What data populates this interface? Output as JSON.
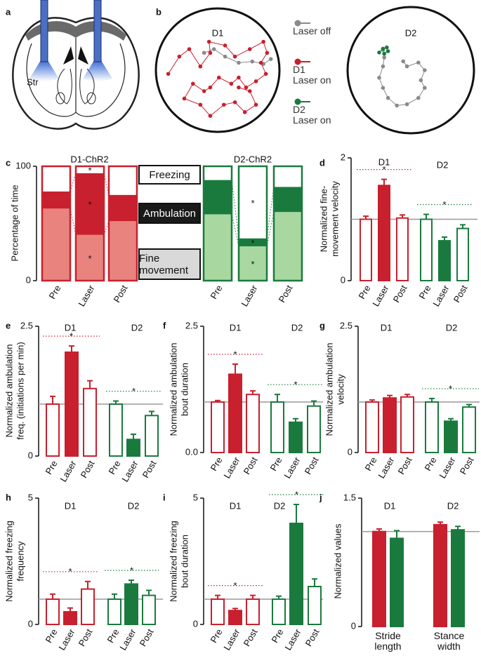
{
  "chart_data": [
    {
      "type": "diagram",
      "label": "a",
      "region_label": "Str"
    },
    {
      "type": "trajectory",
      "label": "b",
      "xlim": [
        0,
        100
      ],
      "ylim": [
        0,
        100
      ],
      "arenas": [
        {
          "title": "D1",
          "color": "#c8202e",
          "series": [
            {
              "name": "Laser off",
              "color": "#8a8a8a",
              "x": [
                39,
                47,
                56,
                67,
                78,
                87,
                93
              ],
              "y": [
                64,
                67,
                61,
                56,
                57,
                55,
                59
              ]
            },
            {
              "name": "D1 Laser on",
              "color": "#c8202e",
              "x": [
                10,
                19,
                27,
                36,
                44,
                43,
                56,
                64,
                76,
                87,
                90,
                85,
                89,
                81,
                73,
                67,
                61,
                51,
                44,
                39,
                30,
                23,
                36,
                44,
                55,
                64,
                72,
                81,
                76,
                67
              ],
              "y": [
                47,
                61,
                67,
                53,
                64,
                73,
                70,
                61,
                67,
                73,
                64,
                56,
                47,
                41,
                36,
                44,
                39,
                44,
                36,
                33,
                39,
                27,
                22,
                13,
                22,
                24,
                16,
                22,
                33,
                36
              ]
            }
          ]
        },
        {
          "title": "D2",
          "color": "#1a7a3e",
          "series": [
            {
              "name": "Laser off",
              "color": "#8a8a8a",
              "x": [
                44,
                47,
                56,
                61,
                58,
                61,
                56,
                47,
                39,
                32,
                28,
                25,
                28,
                29,
                28
              ],
              "y": [
                57,
                53,
                56,
                50,
                42,
                36,
                28,
                23,
                22,
                28,
                36,
                44,
                53,
                60,
                66
              ]
            },
            {
              "name": "D2 Laser on",
              "color": "#1a7a3e",
              "x": [
                25,
                28,
                31,
                32,
                29
              ],
              "y": [
                64,
                67,
                68,
                65,
                63
              ]
            }
          ]
        }
      ]
    },
    {
      "type": "stacked_bar",
      "label": "c",
      "ylabel": [
        "Percentage of time"
      ],
      "ylim": [
        0,
        100
      ],
      "yticks": [
        0,
        100
      ],
      "categories": [
        "Pre",
        "Laser",
        "Post"
      ],
      "legend": [
        {
          "name": "Fine movement",
          "color": "#d9d9d9"
        },
        {
          "name": "Ambulation",
          "color": "#1a1a1a"
        },
        {
          "name": "Freezing",
          "color": "#ffffff"
        }
      ],
      "groups": [
        {
          "name": "D1-ChR2",
          "color": "#c8202e",
          "series": [
            {
              "color": "#e8837d",
              "values": [
                63,
                40,
                52
              ],
              "annotations": [
                null,
                "*",
                null
              ]
            },
            {
              "color": "#c8202e",
              "values": [
                15,
                54,
                23
              ],
              "annotations": [
                null,
                "*",
                null
              ]
            },
            {
              "color": "#ffffff",
              "values": [
                22,
                6,
                25
              ],
              "annotations": [
                null,
                "*",
                null
              ]
            }
          ]
        },
        {
          "name": "D2-ChR2",
          "color": "#1a7a3e",
          "series": [
            {
              "color": "#a8d8a0",
              "values": [
                58,
                30,
                60
              ],
              "annotations": [
                null,
                "*",
                null
              ]
            },
            {
              "color": "#1a7a3e",
              "values": [
                30,
                7,
                22
              ],
              "annotations": [
                null,
                "*",
                null
              ]
            },
            {
              "color": "#ffffff",
              "values": [
                12,
                63,
                18
              ],
              "annotations": [
                null,
                "*",
                null
              ]
            }
          ]
        }
      ]
    },
    {
      "type": "bar",
      "label": "d",
      "ylabel": [
        "Normalized fine-",
        "movement velocity"
      ],
      "ylim": [
        0,
        2
      ],
      "yticks": [
        0,
        2
      ],
      "reference_line": 1,
      "categories": [
        "Pre",
        "Laser",
        "Post"
      ],
      "filled": [
        false,
        true,
        false
      ],
      "series": [
        {
          "name": "D1",
          "color": "#c8202e",
          "values": [
            1.0,
            1.55,
            1.02
          ],
          "errors": [
            0.05,
            0.1,
            0.05
          ],
          "annotation": "*"
        },
        {
          "name": "D2",
          "color": "#1a7a3e",
          "values": [
            1.0,
            0.65,
            0.85
          ],
          "errors": [
            0.08,
            0.06,
            0.06
          ],
          "annotation": "*"
        }
      ]
    },
    {
      "type": "bar",
      "label": "e",
      "ylabel": [
        "Normalized ambulation",
        "freq. (initiations per min)"
      ],
      "ylim": [
        0,
        2.5
      ],
      "yticks": [
        0,
        2.5
      ],
      "reference_line": 1,
      "categories": [
        "Pre",
        "Laser",
        "Post"
      ],
      "filled": [
        false,
        true,
        false
      ],
      "series": [
        {
          "name": "D1",
          "color": "#c8202e",
          "values": [
            1.0,
            2.0,
            1.3
          ],
          "errors": [
            0.15,
            0.12,
            0.15
          ],
          "annotation": "*"
        },
        {
          "name": "D2",
          "color": "#1a7a3e",
          "values": [
            1.0,
            0.32,
            0.78
          ],
          "errors": [
            0.06,
            0.1,
            0.08
          ],
          "annotation": "*"
        }
      ]
    },
    {
      "type": "bar",
      "label": "f",
      "ylabel": [
        "Normalized ambulation",
        "bout duration"
      ],
      "ylim": [
        0,
        2.5
      ],
      "yticks": [
        {
          "value": 0,
          "label": "0.0"
        },
        2.5
      ],
      "reference_line": 1,
      "categories": [
        "Pre",
        "Laser",
        "Post"
      ],
      "filled": [
        false,
        true,
        false
      ],
      "series": [
        {
          "name": "D1",
          "color": "#c8202e",
          "values": [
            1.0,
            1.55,
            1.15
          ],
          "errors": [
            0.03,
            0.2,
            0.07
          ],
          "annotation": "*"
        },
        {
          "name": "D2",
          "color": "#1a7a3e",
          "values": [
            1.0,
            0.6,
            0.92
          ],
          "errors": [
            0.15,
            0.07,
            0.1
          ],
          "annotation": "*"
        }
      ]
    },
    {
      "type": "bar",
      "label": "g",
      "ylabel": [
        "Normalized ambulation",
        "velocity"
      ],
      "ylim": [
        0,
        2.5
      ],
      "yticks": [
        0,
        2.5
      ],
      "reference_line": 1,
      "categories": [
        "Pre",
        "Laser",
        "Post"
      ],
      "filled": [
        false,
        true,
        false
      ],
      "series": [
        {
          "name": "D1",
          "color": "#c8202e",
          "values": [
            1.0,
            1.08,
            1.1
          ],
          "errors": [
            0.04,
            0.05,
            0.05
          ]
        },
        {
          "name": "D2",
          "color": "#1a7a3e",
          "values": [
            1.0,
            0.62,
            0.9
          ],
          "errors": [
            0.07,
            0.05,
            0.05
          ],
          "annotation": "*"
        }
      ]
    },
    {
      "type": "bar",
      "label": "h",
      "ylabel": [
        "Normalized freezing",
        "frequency"
      ],
      "ylim": [
        0,
        5
      ],
      "yticks": [
        0,
        5
      ],
      "reference_line": 1,
      "categories": [
        "Pre",
        "Laser",
        "Post"
      ],
      "filled": [
        false,
        true,
        false
      ],
      "series": [
        {
          "name": "D1",
          "color": "#c8202e",
          "values": [
            1.0,
            0.5,
            1.4
          ],
          "errors": [
            0.2,
            0.15,
            0.3
          ],
          "annotation": "*"
        },
        {
          "name": "D2",
          "color": "#1a7a3e",
          "values": [
            1.0,
            1.6,
            1.15
          ],
          "errors": [
            0.2,
            0.15,
            0.2
          ],
          "annotation": "*"
        }
      ]
    },
    {
      "type": "bar",
      "label": "i",
      "ylabel": [
        "Normalized freezing",
        "bout duration"
      ],
      "ylim": [
        0,
        5
      ],
      "yticks": [
        0,
        5
      ],
      "reference_line": 1,
      "categories": [
        "Pre",
        "Laser",
        "Post"
      ],
      "filled": [
        false,
        true,
        false
      ],
      "series": [
        {
          "name": "D1",
          "color": "#c8202e",
          "values": [
            1.0,
            0.55,
            1.0
          ],
          "errors": [
            0.15,
            0.08,
            0.15
          ],
          "annotation": "*"
        },
        {
          "name": "D2",
          "color": "#1a7a3e",
          "values": [
            1.0,
            4.0,
            1.5
          ],
          "errors": [
            0.12,
            0.75,
            0.3
          ],
          "annotation": "*"
        }
      ]
    },
    {
      "type": "bar",
      "label": "j",
      "ylabel": [
        "Normalized values"
      ],
      "ylim": [
        0,
        1.5
      ],
      "yticks": [
        0,
        1.5
      ],
      "reference_line": 1.11,
      "categories": [
        "Stride length",
        "Stance width"
      ],
      "series": [
        {
          "name": "D1",
          "color": "#c8202e",
          "values": [
            1.11,
            1.19
          ],
          "errors": [
            0.03,
            0.03
          ]
        },
        {
          "name": "D2",
          "color": "#1a7a3e",
          "values": [
            1.03,
            1.13
          ],
          "errors": [
            0.09,
            0.04
          ]
        }
      ]
    }
  ]
}
